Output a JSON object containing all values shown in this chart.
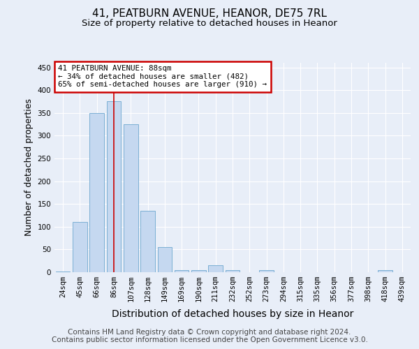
{
  "title": "41, PEATBURN AVENUE, HEANOR, DE75 7RL",
  "subtitle": "Size of property relative to detached houses in Heanor",
  "xlabel": "Distribution of detached houses by size in Heanor",
  "ylabel": "Number of detached properties",
  "categories": [
    "24sqm",
    "45sqm",
    "66sqm",
    "86sqm",
    "107sqm",
    "128sqm",
    "149sqm",
    "169sqm",
    "190sqm",
    "211sqm",
    "232sqm",
    "252sqm",
    "273sqm",
    "294sqm",
    "315sqm",
    "335sqm",
    "356sqm",
    "377sqm",
    "398sqm",
    "418sqm",
    "439sqm"
  ],
  "values": [
    2,
    110,
    350,
    375,
    325,
    135,
    55,
    5,
    5,
    15,
    5,
    0,
    5,
    0,
    0,
    0,
    0,
    0,
    0,
    5,
    0
  ],
  "bar_color": "#c5d8f0",
  "bar_edge_color": "#7bafd4",
  "highlight_index": 3,
  "highlight_color": "#cc0000",
  "ylim": [
    0,
    460
  ],
  "yticks": [
    0,
    50,
    100,
    150,
    200,
    250,
    300,
    350,
    400,
    450
  ],
  "annotation_line1": "41 PEATBURN AVENUE: 88sqm",
  "annotation_line2": "← 34% of detached houses are smaller (482)",
  "annotation_line3": "65% of semi-detached houses are larger (910) →",
  "annotation_box_color": "#ffffff",
  "annotation_border_color": "#cc0000",
  "footer_line1": "Contains HM Land Registry data © Crown copyright and database right 2024.",
  "footer_line2": "Contains public sector information licensed under the Open Government Licence v3.0.",
  "bg_color": "#e8eef8",
  "plot_bg_color": "#e8eef8",
  "grid_color": "#ffffff",
  "title_fontsize": 11,
  "subtitle_fontsize": 9.5,
  "xlabel_fontsize": 10,
  "ylabel_fontsize": 9,
  "tick_fontsize": 7.5,
  "footer_fontsize": 7.5
}
